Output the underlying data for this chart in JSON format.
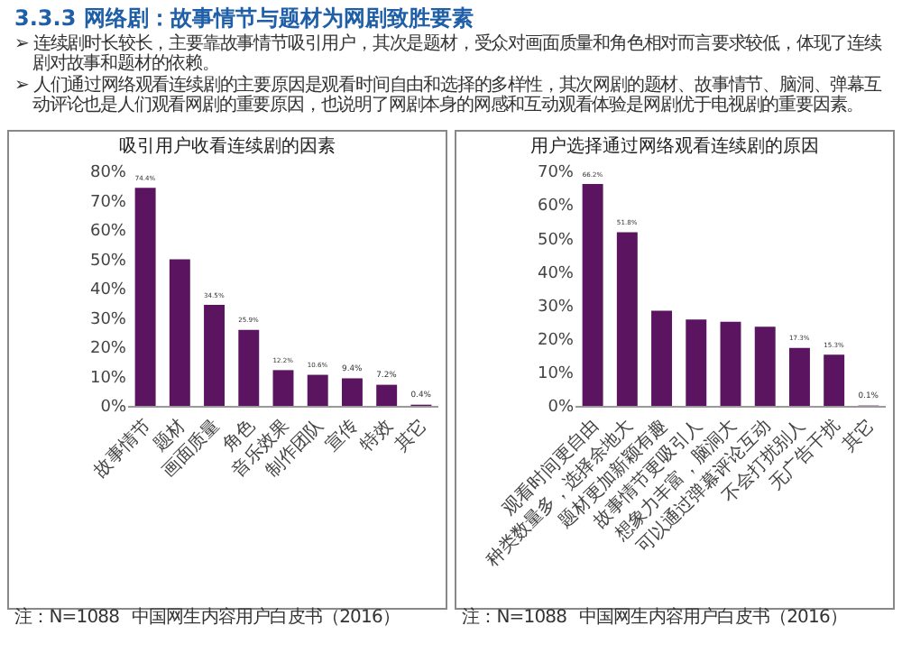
{
  "chart_data": [
    {
      "type": "other",
      "title": "3.3.3 网络剧：故事情节与题材为网剧致胜要素",
      "annotations": [
        "➢ 连续剧时长较长，主要靠故事情节吸引用户，其次是题材，受众对画面质量和角色相对而言要求较低，体现了连续剧对故事和题材的依赖。",
        "➢ 人们通过网络观看连续剧的主要原因是观看时间自由和选择的多样性，其次网剧的题材、故事情节、脑洞、弹幕互动评论也是人们观看网剧的重要原因，也说明了网剧本身的网感和互动观看体验是网剧优于电视剧的重要因素。"
      ]
    },
    {
      "type": "bar",
      "title": "吸引用户收看连续剧的因素",
      "categories": [
        "故事情节",
        "题材",
        "画面质量",
        "角色",
        "音乐效果",
        "制作团队",
        "宣传",
        "特效",
        "其它"
      ],
      "values": [
        74.4,
        50,
        34.5,
        25.9,
        12.2,
        10.6,
        9.4,
        7.2,
        0.4
      ],
      "value_labels": [
        "74.4%",
        null,
        "34.5%",
        "25.9%",
        "12.2%",
        "10.6%",
        "9.4%",
        "7.2%",
        "0.4%"
      ],
      "color": "#5a1460",
      "ylim": [
        0,
        80
      ],
      "yticks": [
        {
          "value": 0,
          "label": "0%"
        },
        {
          "value": 10,
          "label": "10%"
        },
        {
          "value": 20,
          "label": "20%"
        },
        {
          "value": 30,
          "label": "30%"
        },
        {
          "value": 40,
          "label": "40%"
        },
        {
          "value": 50,
          "label": "50%"
        },
        {
          "value": 60,
          "label": "60%"
        },
        {
          "value": 70,
          "label": "70%"
        },
        {
          "value": 80,
          "label": "80%"
        }
      ],
      "annotations": [
        "注：N=1088",
        "中国网生内容用户白皮书（2016）"
      ]
    },
    {
      "type": "bar",
      "title": "用户选择通过网络观看连续剧的原因",
      "categories": [
        "观看时间更自由",
        "种类数量多，选择余地大",
        "题材更加新颖有趣",
        "故事情节更吸引人",
        "想象力丰富，脑洞大",
        "可以通过弹幕评论互动",
        "不会打扰别人",
        "无广告干扰",
        "其它"
      ],
      "values": [
        66.2,
        51.8,
        28.4,
        25.8,
        25.1,
        23.6,
        17.3,
        15.3,
        0.1
      ],
      "value_labels": [
        "66.2%",
        "51.8%",
        null,
        null,
        null,
        null,
        "17.3%",
        "15.3%",
        "0.1%"
      ],
      "color": "#5a1460",
      "ylim": [
        0,
        70
      ],
      "yticks": [
        {
          "value": 0,
          "label": "0%"
        },
        {
          "value": 10,
          "label": "10%"
        },
        {
          "value": 20,
          "label": "20%"
        },
        {
          "value": 30,
          "label": "30%"
        },
        {
          "value": 40,
          "label": "40%"
        },
        {
          "value": 50,
          "label": "50%"
        },
        {
          "value": 60,
          "label": "60%"
        },
        {
          "value": 70,
          "label": "70%"
        }
      ],
      "annotations": [
        "注：N=1088",
        "中国网生内容用户白皮书（2016）"
      ]
    }
  ]
}
